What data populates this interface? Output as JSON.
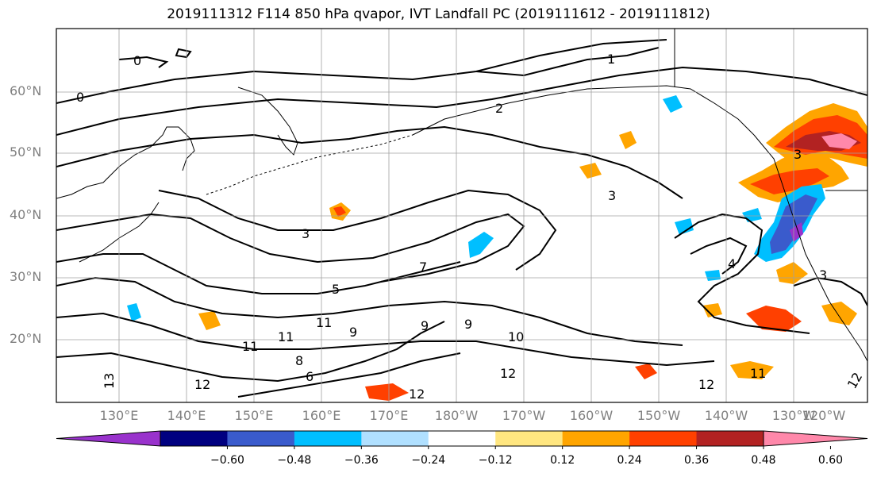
{
  "title": "2019111312 F114 850 hPa qvapor, IVT Landfall PC (2019111612 - 2019111812)",
  "lat_labels": [
    "60°N",
    "50°N",
    "40°N",
    "30°N",
    "20°N"
  ],
  "lon_labels": [
    "130°E",
    "140°E",
    "150°E",
    "160°E",
    "170°E",
    "180°W",
    "170°W",
    "160°W",
    "150°W",
    "140°W",
    "130°W",
    "120°W"
  ],
  "contour_labels": [
    "0",
    "1",
    "0",
    "2",
    "3",
    "3",
    "3",
    "5",
    "7",
    "9",
    "9",
    "9",
    "10",
    "11",
    "11",
    "11",
    "12",
    "12",
    "12",
    "12",
    "13",
    "8",
    "6",
    "4",
    "3",
    "11",
    "12"
  ],
  "colorbar": {
    "tick_labels": [
      "−0.60",
      "−0.48",
      "−0.36",
      "−0.24",
      "−0.12",
      "0.12",
      "0.24",
      "0.36",
      "0.48",
      "0.60"
    ],
    "colors": [
      "#9932cc",
      "#000080",
      "#3a5bcc",
      "#00bfff",
      "#b0e0ff",
      "#ffffff",
      "#ffe680",
      "#ffa500",
      "#ff4000",
      "#b22222",
      "#ff88aa"
    ]
  }
}
